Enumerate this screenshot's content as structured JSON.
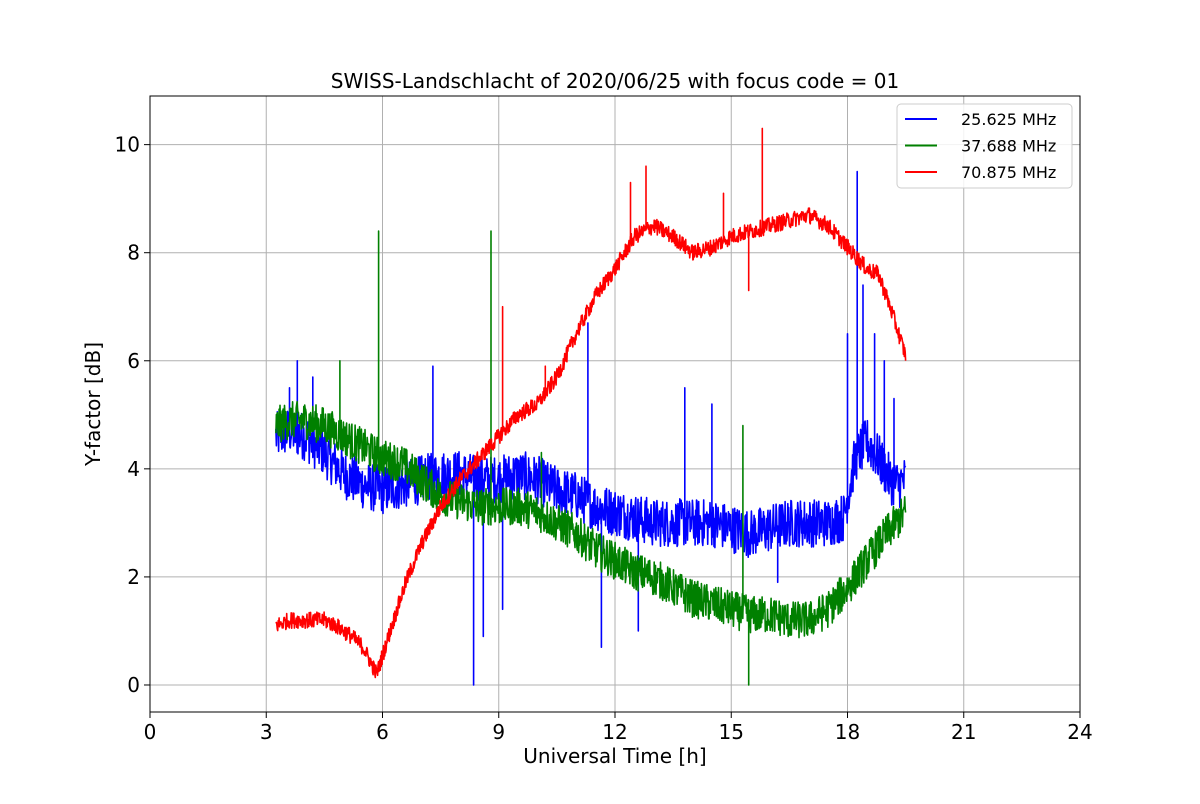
{
  "chart_data": {
    "type": "line",
    "title": "SWISS-Landschlacht of 2020/06/25 with focus code = 01",
    "xlabel": "Universal Time [h]",
    "ylabel": "Y-factor [dB]",
    "xlim": [
      0,
      24
    ],
    "ylim": [
      -0.5,
      10.9
    ],
    "xticks": [
      0,
      3,
      6,
      9,
      12,
      15,
      18,
      21,
      24
    ],
    "yticks": [
      0,
      2,
      4,
      6,
      8,
      10
    ],
    "grid": true,
    "legend_position": "top-right",
    "series": [
      {
        "name": "25.625 MHz",
        "color": "#0000ff",
        "noise": 0.45,
        "x": [
          3.25,
          3.6,
          4.0,
          4.5,
          5.0,
          5.5,
          6.0,
          6.5,
          7.0,
          7.5,
          8.0,
          8.5,
          9.0,
          9.5,
          10.0,
          10.5,
          11.0,
          11.5,
          12.0,
          12.5,
          13.0,
          13.5,
          14.0,
          14.5,
          15.0,
          15.5,
          16.0,
          16.5,
          17.0,
          17.5,
          17.9,
          18.2,
          18.5,
          18.8,
          19.1,
          19.3,
          19.5
        ],
        "y": [
          4.6,
          4.7,
          4.6,
          4.3,
          3.9,
          3.7,
          3.6,
          3.7,
          3.8,
          3.9,
          3.9,
          3.8,
          3.8,
          3.9,
          3.8,
          3.6,
          3.5,
          3.3,
          3.2,
          3.1,
          3.0,
          3.0,
          3.0,
          3.0,
          2.9,
          2.8,
          2.9,
          3.0,
          3.0,
          3.0,
          3.1,
          4.2,
          4.5,
          4.2,
          3.8,
          3.7,
          3.8
        ],
        "spikes": [
          [
            3.6,
            5.5
          ],
          [
            3.8,
            6.0
          ],
          [
            4.2,
            5.7
          ],
          [
            7.3,
            5.9
          ],
          [
            8.35,
            0.0
          ],
          [
            8.6,
            0.9
          ],
          [
            9.1,
            1.4
          ],
          [
            11.3,
            6.7
          ],
          [
            11.65,
            0.7
          ],
          [
            12.6,
            1.0
          ],
          [
            13.8,
            5.5
          ],
          [
            14.5,
            5.2
          ],
          [
            16.2,
            1.9
          ],
          [
            18.0,
            6.5
          ],
          [
            18.25,
            9.5
          ],
          [
            18.4,
            7.4
          ],
          [
            18.7,
            6.5
          ],
          [
            18.95,
            6.0
          ],
          [
            19.2,
            5.3
          ]
        ]
      },
      {
        "name": "37.688 MHz",
        "color": "#008000",
        "noise": 0.35,
        "x": [
          3.25,
          3.6,
          4.0,
          4.5,
          5.0,
          5.5,
          6.0,
          6.5,
          7.0,
          7.5,
          8.0,
          8.5,
          9.0,
          9.5,
          10.0,
          10.5,
          11.0,
          11.5,
          12.0,
          12.5,
          13.0,
          13.5,
          14.0,
          14.5,
          15.0,
          15.5,
          16.0,
          16.5,
          17.0,
          17.5,
          18.0,
          18.5,
          19.0,
          19.5
        ],
        "y": [
          4.8,
          4.9,
          4.9,
          4.8,
          4.6,
          4.4,
          4.2,
          4.1,
          3.8,
          3.5,
          3.4,
          3.3,
          3.3,
          3.3,
          3.2,
          3.0,
          2.8,
          2.5,
          2.3,
          2.1,
          2.0,
          1.8,
          1.6,
          1.5,
          1.4,
          1.3,
          1.3,
          1.2,
          1.2,
          1.4,
          1.8,
          2.3,
          2.8,
          3.2
        ],
        "spikes": [
          [
            4.9,
            6.0
          ],
          [
            5.9,
            8.4
          ],
          [
            8.8,
            8.4
          ],
          [
            10.1,
            4.3
          ],
          [
            15.3,
            4.8
          ],
          [
            15.45,
            0.0
          ]
        ]
      },
      {
        "name": "70.875 MHz",
        "color": "#ff0000",
        "noise": 0.15,
        "x": [
          3.25,
          3.6,
          4.0,
          4.5,
          4.8,
          5.2,
          5.5,
          5.85,
          6.2,
          6.6,
          7.0,
          7.5,
          8.0,
          8.5,
          9.0,
          9.5,
          10.0,
          10.5,
          11.0,
          11.5,
          12.0,
          12.5,
          13.0,
          13.5,
          14.0,
          14.5,
          15.0,
          15.5,
          16.0,
          16.5,
          17.0,
          17.5,
          18.0,
          18.5,
          18.8,
          19.1,
          19.5
        ],
        "y": [
          1.1,
          1.2,
          1.2,
          1.2,
          1.1,
          0.9,
          0.7,
          0.2,
          1.0,
          1.9,
          2.6,
          3.3,
          3.8,
          4.2,
          4.6,
          5.0,
          5.2,
          5.7,
          6.5,
          7.2,
          7.7,
          8.3,
          8.5,
          8.3,
          8.0,
          8.1,
          8.3,
          8.4,
          8.5,
          8.6,
          8.7,
          8.5,
          8.1,
          7.7,
          7.6,
          7.0,
          6.1
        ],
        "spikes": [
          [
            9.1,
            7.0
          ],
          [
            12.4,
            9.3
          ],
          [
            12.8,
            9.6
          ],
          [
            14.8,
            9.1
          ],
          [
            15.45,
            7.3
          ],
          [
            15.8,
            10.3
          ],
          [
            10.2,
            5.9
          ]
        ]
      }
    ]
  }
}
